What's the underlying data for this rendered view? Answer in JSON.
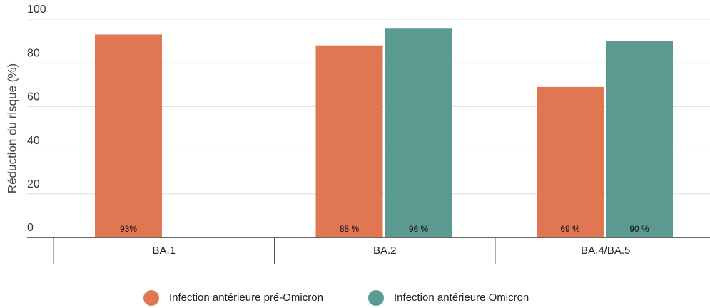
{
  "chart_data": {
    "type": "bar",
    "y_label": "Réduction du risque (%)",
    "categories": [
      "BA.1",
      "BA.2",
      "BA.4/BA.5"
    ],
    "series": [
      {
        "name": "Infection antérieure pré-Omicron",
        "color": "#e07752",
        "values": [
          93,
          88,
          69
        ],
        "value_labels": [
          "93%",
          "88 %",
          "69 %"
        ]
      },
      {
        "name": "Infection antérieure Omicron",
        "color": "#5a9a90",
        "values": [
          null,
          96,
          90
        ],
        "value_labels": [
          null,
          "96 %",
          "90 %"
        ]
      }
    ],
    "ylim": [
      0,
      100
    ],
    "yticks": [
      0,
      20,
      40,
      60,
      80,
      100
    ],
    "grid": true
  }
}
